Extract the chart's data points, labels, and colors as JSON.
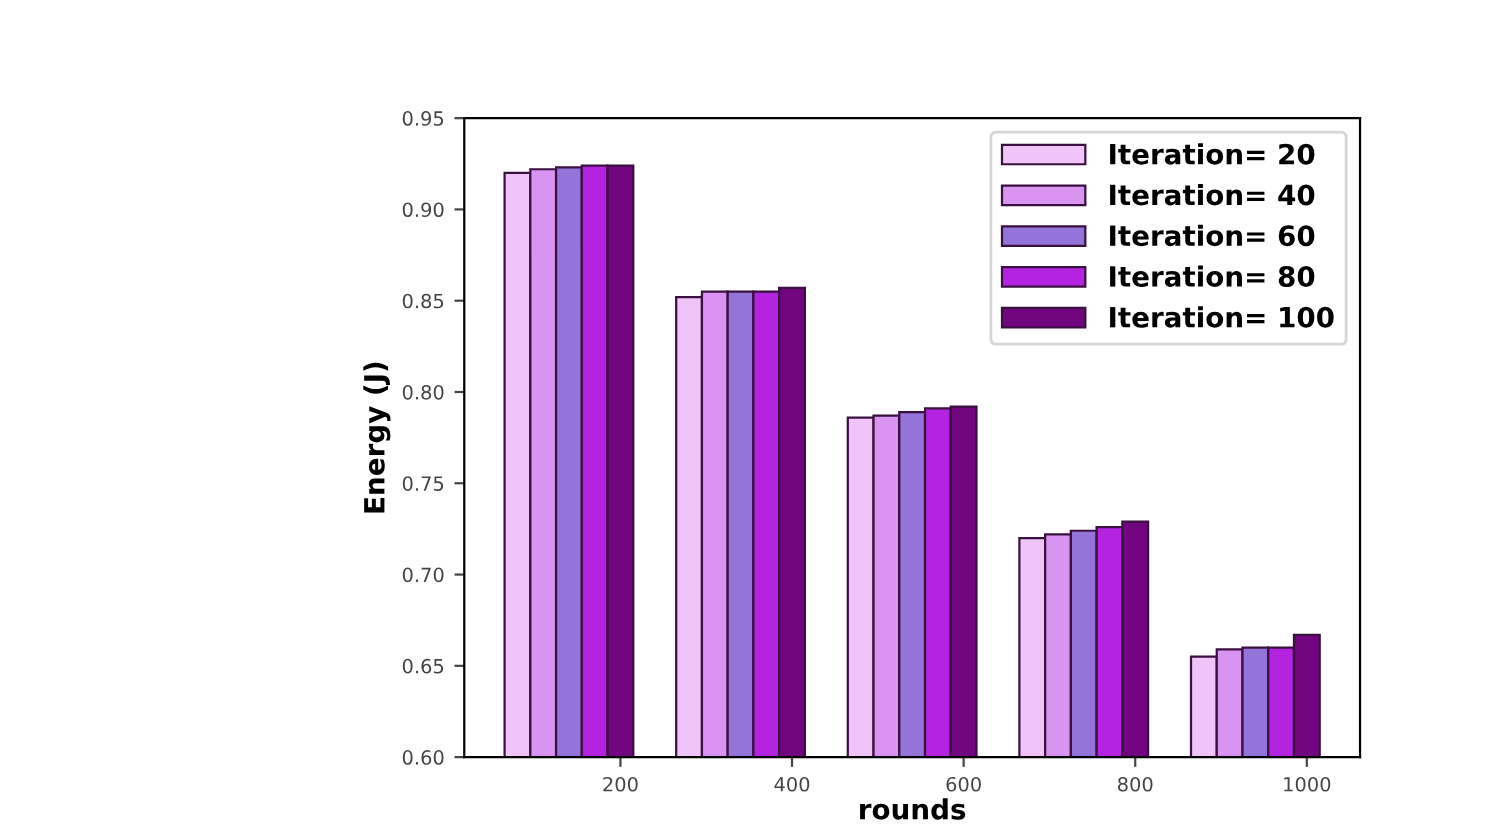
{
  "chart_data": {
    "type": "bar",
    "xlabel": "rounds",
    "ylabel": "Energy (J)",
    "series": [
      {
        "name": "Iteration= 20",
        "color": "#f0c4f8",
        "x": [
          80,
          280,
          480,
          680,
          880
        ],
        "values": [
          0.92,
          0.852,
          0.786,
          0.72,
          0.655
        ]
      },
      {
        "name": "Iteration= 40",
        "color": "#d894f0",
        "x": [
          110,
          310,
          510,
          710,
          910
        ],
        "values": [
          0.922,
          0.855,
          0.787,
          0.722,
          0.659
        ]
      },
      {
        "name": "Iteration= 60",
        "color": "#9474d8",
        "x": [
          140,
          340,
          540,
          740,
          940
        ],
        "values": [
          0.923,
          0.855,
          0.789,
          0.724,
          0.66
        ]
      },
      {
        "name": "Iteration= 80",
        "color": "#b424e0",
        "x": [
          170,
          370,
          570,
          770,
          970
        ],
        "values": [
          0.924,
          0.855,
          0.791,
          0.726,
          0.66
        ]
      },
      {
        "name": "Iteration= 100",
        "color": "#720580",
        "x": [
          200,
          400,
          600,
          800,
          1000
        ],
        "values": [
          0.924,
          0.857,
          0.792,
          0.729,
          0.667
        ]
      }
    ],
    "xlim": [
      18,
      1062
    ],
    "xticks": [
      200,
      400,
      600,
      800,
      1000
    ],
    "ylim": [
      0.6,
      0.95
    ],
    "yticks": [
      {
        "value": 0.6,
        "label": "0.60"
      },
      {
        "value": 0.65,
        "label": "0.65"
      },
      {
        "value": 0.7,
        "label": "0.70"
      },
      {
        "value": 0.75,
        "label": "0.75"
      },
      {
        "value": 0.8,
        "label": "0.80"
      },
      {
        "value": 0.85,
        "label": "0.85"
      },
      {
        "value": 0.9,
        "label": "0.90"
      },
      {
        "value": 0.95,
        "label": "0.95"
      }
    ],
    "grid": false,
    "legend": "top right"
  }
}
